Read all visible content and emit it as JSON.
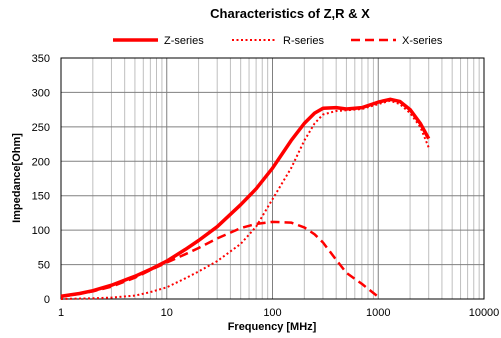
{
  "chart_data": {
    "type": "line",
    "title": "Characteristics of Z,R & X",
    "xlabel": "Frequency [MHz]",
    "ylabel": "Impedance[Ohm]",
    "x_scale": "log",
    "xlim": [
      1,
      10000
    ],
    "ylim": [
      0,
      350
    ],
    "grid": true,
    "legend_position": "top",
    "x_ticks": [
      "1",
      "10",
      "100",
      "1000",
      "10000"
    ],
    "y_ticks": [
      "0",
      "50",
      "100",
      "150",
      "200",
      "250",
      "300",
      "350"
    ],
    "series": [
      {
        "name": "Z-series",
        "style": "solid",
        "color": "#ff0000",
        "x": [
          1,
          1.5,
          2,
          3,
          5,
          7,
          10,
          15,
          20,
          30,
          50,
          70,
          100,
          150,
          200,
          250,
          300,
          400,
          500,
          700,
          1000,
          1300,
          1600,
          2000,
          2500,
          3000
        ],
        "y": [
          4,
          8,
          12,
          20,
          33,
          43,
          55,
          72,
          85,
          105,
          137,
          160,
          190,
          230,
          255,
          270,
          277,
          278,
          276,
          278,
          286,
          290,
          287,
          275,
          255,
          233
        ]
      },
      {
        "name": "R-series",
        "style": "dotted",
        "color": "#ff0000",
        "x": [
          1,
          2,
          3,
          5,
          7,
          10,
          15,
          20,
          30,
          50,
          70,
          100,
          150,
          200,
          250,
          300,
          400,
          500,
          700,
          1000,
          1300,
          1600,
          2000,
          2500,
          3000
        ],
        "y": [
          0,
          1,
          2,
          5,
          10,
          17,
          30,
          40,
          55,
          80,
          105,
          145,
          190,
          230,
          255,
          268,
          273,
          274,
          276,
          283,
          288,
          283,
          270,
          250,
          220
        ]
      },
      {
        "name": "X-series",
        "style": "dashed",
        "color": "#ff0000",
        "x": [
          1,
          2,
          3,
          5,
          7,
          10,
          15,
          20,
          30,
          50,
          70,
          100,
          150,
          200,
          250,
          300,
          400,
          500,
          700,
          1000
        ],
        "y": [
          3,
          11,
          18,
          31,
          42,
          53,
          65,
          74,
          88,
          103,
          109,
          112,
          111,
          104,
          94,
          82,
          57,
          38,
          22,
          3
        ]
      }
    ]
  }
}
